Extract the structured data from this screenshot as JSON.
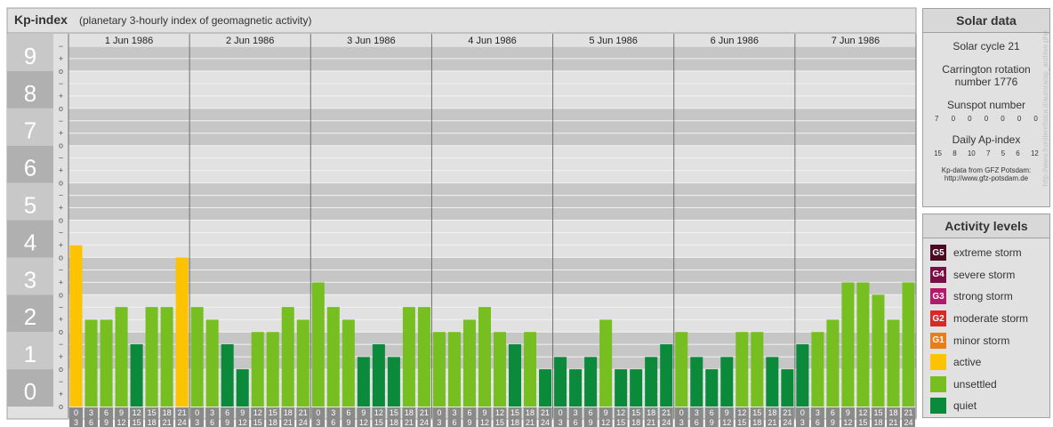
{
  "chart_data": {
    "type": "bar",
    "title": "Kp-index",
    "subtitle": "(planetary 3-hourly index of geomagnetic activity)",
    "ylim": [
      0,
      9
    ],
    "y_ticks": [
      "0",
      "1",
      "2",
      "3",
      "4",
      "5",
      "6",
      "7",
      "8",
      "9"
    ],
    "y_minor_ticks": [
      "o",
      "+",
      "−"
    ],
    "days": [
      "1 Jun 1986",
      "2 Jun 1986",
      "3 Jun 1986",
      "4 Jun 1986",
      "5 Jun 1986",
      "6 Jun 1986",
      "7 Jun 1986"
    ],
    "interval_start_labels": [
      "0",
      "3",
      "6",
      "9",
      "12",
      "15",
      "18",
      "21"
    ],
    "interval_end_labels": [
      "3",
      "6",
      "9",
      "12",
      "15",
      "18",
      "21",
      "24"
    ],
    "values": [
      4.33,
      2.33,
      2.33,
      2.67,
      1.67,
      2.67,
      2.67,
      4.0,
      2.67,
      2.33,
      1.67,
      1.0,
      2.0,
      2.0,
      2.67,
      2.33,
      3.33,
      2.67,
      2.33,
      1.33,
      1.67,
      1.33,
      2.67,
      2.67,
      2.0,
      2.0,
      2.33,
      2.67,
      2.0,
      1.67,
      2.0,
      1.0,
      1.33,
      1.0,
      1.33,
      2.33,
      1.0,
      1.0,
      1.33,
      1.67,
      2.0,
      1.33,
      1.0,
      1.33,
      2.0,
      2.0,
      1.33,
      1.0,
      1.67,
      2.0,
      2.33,
      3.33,
      3.33,
      3.0,
      2.33,
      3.33
    ],
    "colors": {
      "quiet": "#0a8a3a",
      "unsettled": "#77be21",
      "active": "#fdc300",
      "band_dark": "#c6c6c6",
      "band_light": "#e1e1e1"
    }
  },
  "solar_data": {
    "title": "Solar data",
    "cycle": "Solar cycle 21",
    "carrington_line1": "Carrington rotation",
    "carrington_line2": "number 1776",
    "sunspot_label": "Sunspot number",
    "sunspot_values": [
      "7",
      "0",
      "0",
      "0",
      "0",
      "0",
      "0"
    ],
    "ap_label": "Daily Ap-index",
    "ap_values": [
      "15",
      "8",
      "10",
      "7",
      "5",
      "6",
      "12"
    ],
    "source_line1": "Kp-data from GFZ Potsdam:",
    "source_line2": "http://www.gfz-potsdam.de"
  },
  "activity_levels": {
    "title": "Activity levels",
    "items": [
      {
        "code": "G5",
        "label": "extreme storm",
        "color": "#4a0a22"
      },
      {
        "code": "G4",
        "label": "severe storm",
        "color": "#7b0f45"
      },
      {
        "code": "G3",
        "label": "strong storm",
        "color": "#b21a6b"
      },
      {
        "code": "G2",
        "label": "moderate storm",
        "color": "#d62a2a"
      },
      {
        "code": "G1",
        "label": "minor storm",
        "color": "#e87d1c"
      },
      {
        "code": "",
        "label": "active",
        "color": "#fdc300"
      },
      {
        "code": "",
        "label": "unsettled",
        "color": "#77be21"
      },
      {
        "code": "",
        "label": "quiet",
        "color": "#0a8a3a"
      }
    ]
  },
  "credit": "http://www.frontierefisica.it/aurora/ap_archive.php"
}
